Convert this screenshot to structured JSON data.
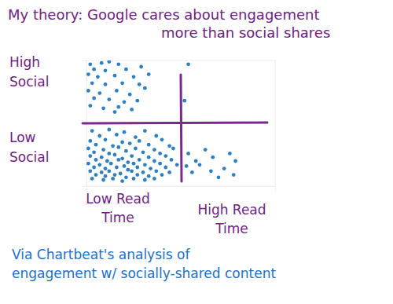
{
  "chart_data": {
    "type": "scatter",
    "title": "My theory: Google cares about engagement\nmore than social shares",
    "y_labels": [
      "Low\nSocial",
      "High\nSocial"
    ],
    "x_labels": [
      "Low Read\nTime",
      "High Read\nTime"
    ],
    "caption": "Via Chartbeat's analysis of\nengagement w/ socially-shared content",
    "xlim": [
      0,
      100
    ],
    "ylim": [
      0,
      100
    ],
    "xticks": [],
    "yticks": [],
    "tick_labels": false,
    "grid": false,
    "marker": "circle",
    "color": "#2f7fc1",
    "x": [
      2,
      8,
      12,
      17,
      4,
      10,
      21,
      1,
      6,
      15,
      25,
      3,
      10,
      19,
      28,
      1,
      7,
      16,
      23,
      4,
      12,
      20,
      27,
      2,
      9,
      17,
      24,
      31,
      29,
      33,
      15,
      54,
      52,
      3,
      12,
      20,
      31,
      7,
      16,
      26,
      37,
      2,
      10,
      19,
      28,
      40,
      5,
      14,
      23,
      33,
      44,
      1,
      9,
      17,
      26,
      36,
      46,
      4,
      12,
      21,
      30,
      39,
      2,
      8,
      15,
      19,
      24,
      33,
      42,
      5,
      11,
      17,
      22,
      28,
      36,
      45,
      1,
      7,
      13,
      20,
      25,
      31,
      39,
      48,
      4,
      10,
      16,
      22,
      27,
      34,
      42,
      2,
      8,
      12,
      18,
      24,
      30,
      37,
      44,
      5,
      10,
      15,
      21,
      27,
      33,
      40,
      3,
      9,
      14,
      19,
      25,
      31,
      36,
      54,
      60,
      67,
      73,
      79,
      56,
      63,
      70,
      76,
      58,
      66,
      53,
      78
    ],
    "values": [
      97,
      98,
      99,
      97,
      93,
      92,
      93,
      89,
      87,
      88,
      87,
      82,
      81,
      82,
      81,
      76,
      74,
      76,
      73,
      70,
      69,
      67,
      68,
      64,
      62,
      63,
      61,
      78,
      95,
      89,
      59,
      97,
      68,
      44,
      45,
      43,
      44,
      40,
      41,
      39,
      40,
      36,
      37,
      35,
      36,
      37,
      33,
      32,
      34,
      33,
      32,
      30,
      29,
      31,
      30,
      29,
      30,
      27,
      26,
      28,
      27,
      26,
      24,
      23,
      25,
      22,
      24,
      23,
      24,
      21,
      20,
      21,
      19,
      21,
      20,
      21,
      18,
      17,
      18,
      16,
      18,
      17,
      18,
      17,
      15,
      14,
      15,
      13,
      15,
      14,
      15,
      12,
      11,
      12,
      10,
      12,
      11,
      12,
      11,
      9,
      8,
      9,
      7,
      9,
      8,
      9,
      6,
      5,
      6,
      4,
      6,
      5,
      6,
      26,
      17,
      23,
      14,
      20,
      11,
      29,
      7,
      26,
      20,
      12,
      16,
      9
    ]
  }
}
